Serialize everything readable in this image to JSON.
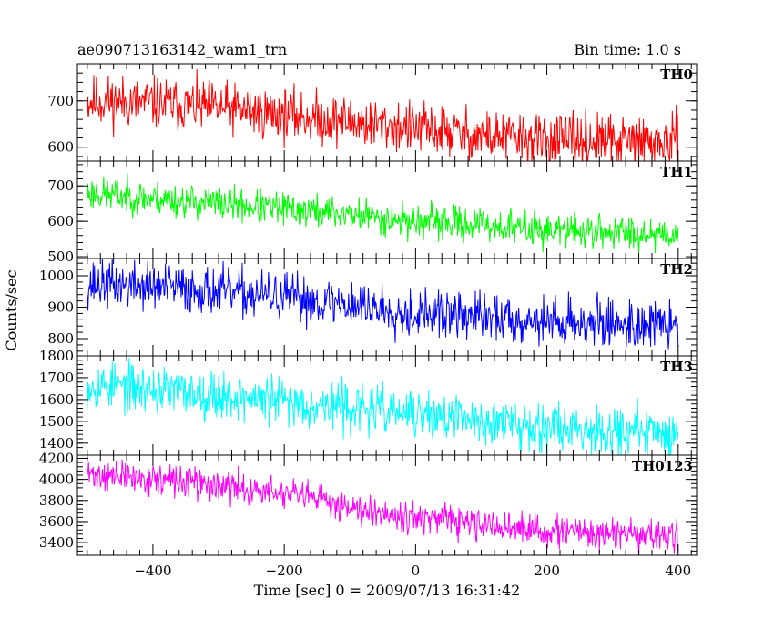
{
  "chart_data": {
    "type": "line",
    "title": "ae090713163142_wam1_trn",
    "bin_time_label": "Bin time: 1.0 s",
    "xlabel": "Time [sec] 0 = 2009/07/13 16:31:42",
    "ylabel": "Counts/sec",
    "x_range": [
      -500,
      400
    ],
    "xlim": [
      -515,
      428
    ],
    "x_ticks": [
      -400,
      -200,
      0,
      200,
      400
    ],
    "x_tick_labels": [
      "−400",
      "−200",
      "0",
      "200",
      "400"
    ],
    "panels": [
      {
        "name": "TH0",
        "color": "#ff0000",
        "ylim": [
          570,
          780
        ],
        "y_ticks": [
          600,
          700
        ],
        "y_tick_labels": [
          "600",
          "700"
        ],
        "trend": {
          "x": [
            -500,
            -400,
            -300,
            -200,
            -100,
            0,
            100,
            200,
            300,
            400
          ],
          "y": [
            700,
            695,
            685,
            670,
            655,
            640,
            625,
            615,
            612,
            610
          ]
        },
        "noise_amplitude": 28,
        "seed": 11
      },
      {
        "name": "TH1",
        "color": "#00ff00",
        "ylim": [
          495,
          770
        ],
        "y_ticks": [
          500,
          600,
          700
        ],
        "y_tick_labels": [
          "500",
          "600",
          "700"
        ],
        "trend": {
          "x": [
            -500,
            -400,
            -300,
            -200,
            -100,
            0,
            100,
            200,
            300,
            400
          ],
          "y": [
            680,
            665,
            650,
            635,
            620,
            600,
            590,
            575,
            570,
            565
          ]
        },
        "noise_amplitude": 24,
        "seed": 23
      },
      {
        "name": "TH2",
        "color": "#0000ff",
        "ylim": [
          745,
          1055
        ],
        "y_ticks": [
          800,
          900,
          1000
        ],
        "y_tick_labels": [
          "800",
          "900",
          "1000"
        ],
        "trend": {
          "x": [
            -500,
            -400,
            -300,
            -200,
            -100,
            0,
            100,
            200,
            300,
            400
          ],
          "y": [
            975,
            965,
            950,
            930,
            910,
            880,
            870,
            855,
            850,
            840
          ]
        },
        "noise_amplitude": 38,
        "seed": 37
      },
      {
        "name": "TH3",
        "color": "#00ffff",
        "ylim": [
          1345,
          1800
        ],
        "y_ticks": [
          1400,
          1500,
          1600,
          1700,
          1800
        ],
        "y_tick_labels": [
          "1400",
          "1500",
          "1600",
          "1700",
          "1800"
        ],
        "trend": {
          "x": [
            -500,
            -400,
            -300,
            -200,
            -100,
            0,
            100,
            200,
            300,
            400
          ],
          "y": [
            1670,
            1645,
            1620,
            1590,
            1565,
            1530,
            1500,
            1480,
            1460,
            1445
          ]
        },
        "noise_amplitude": 55,
        "seed": 53
      },
      {
        "name": "TH0123",
        "color": "#ff00ff",
        "ylim": [
          3280,
          4230
        ],
        "y_ticks": [
          3400,
          3600,
          3800,
          4000,
          4200
        ],
        "y_tick_labels": [
          "3400",
          "3600",
          "3800",
          "4000",
          "4200"
        ],
        "trend": {
          "x": [
            -500,
            -400,
            -300,
            -200,
            -100,
            0,
            100,
            200,
            300,
            400
          ],
          "y": [
            4050,
            4000,
            3940,
            3860,
            3750,
            3640,
            3560,
            3510,
            3480,
            3460
          ]
        },
        "noise_amplitude": 75,
        "seed": 71
      }
    ]
  }
}
